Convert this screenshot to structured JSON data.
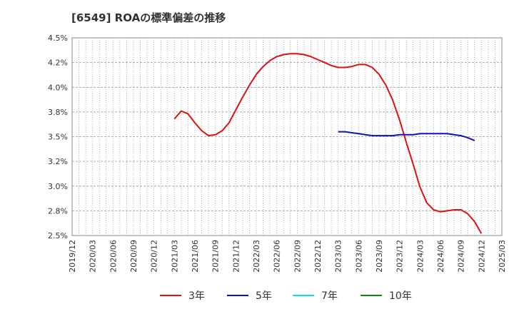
{
  "chart_data": {
    "type": "line",
    "title": "[6549]  ROAの標準偏差の推移",
    "xlabel": "",
    "ylabel": "",
    "ylim": [
      2.5,
      4.5
    ],
    "y_ticks": [
      "2.5%",
      "2.8%",
      "3.0%",
      "3.2%",
      "3.5%",
      "3.8%",
      "4.0%",
      "4.2%",
      "4.5%"
    ],
    "y_tick_values": [
      2.5,
      2.75,
      3.0,
      3.25,
      3.5,
      3.75,
      4.0,
      4.25,
      4.5
    ],
    "x_ticks": [
      "2019/12",
      "2020/03",
      "2020/06",
      "2020/09",
      "2020/12",
      "2021/03",
      "2021/06",
      "2021/09",
      "2021/12",
      "2022/03",
      "2022/06",
      "2022/09",
      "2022/12",
      "2023/03",
      "2023/06",
      "2023/09",
      "2023/12",
      "2024/03",
      "2024/06",
      "2024/09",
      "2024/12",
      "2025/03"
    ],
    "grid": true,
    "legend_position": "bottom",
    "series": [
      {
        "name": "3年",
        "color": "#dd1111",
        "start_month_index": 15,
        "values": [
          3.68,
          3.76,
          3.73,
          3.64,
          3.56,
          3.51,
          3.52,
          3.56,
          3.64,
          3.77,
          3.9,
          4.02,
          4.13,
          4.21,
          4.27,
          4.31,
          4.33,
          4.34,
          4.34,
          4.33,
          4.31,
          4.28,
          4.25,
          4.22,
          4.2,
          4.2,
          4.21,
          4.23,
          4.23,
          4.2,
          4.13,
          4.02,
          3.87,
          3.67,
          3.44,
          3.22,
          2.99,
          2.83,
          2.76,
          2.74,
          2.75,
          2.76,
          2.76,
          2.72,
          2.64,
          2.52
        ]
      },
      {
        "name": "5年",
        "color": "#1111bb",
        "start_month_index": 39,
        "values": [
          3.55,
          3.55,
          3.54,
          3.53,
          3.52,
          3.51,
          3.51,
          3.51,
          3.51,
          3.52,
          3.52,
          3.52,
          3.53,
          3.53,
          3.53,
          3.53,
          3.53,
          3.52,
          3.51,
          3.49,
          3.46
        ]
      },
      {
        "name": "7年",
        "color": "#11dddd",
        "start_month_index": 0,
        "values": []
      },
      {
        "name": "10年",
        "color": "#118811",
        "start_month_index": 0,
        "values": []
      }
    ]
  }
}
